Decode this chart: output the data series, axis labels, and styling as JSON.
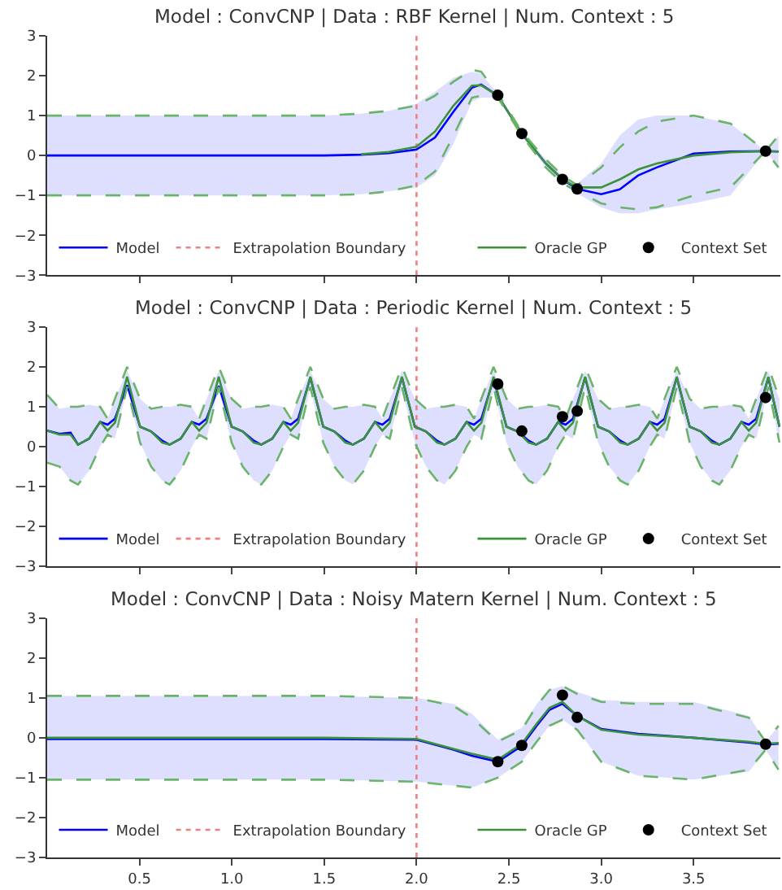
{
  "chart_data": [
    {
      "type": "line",
      "title": "Model : ConvCNP | Data : RBF Kernel | Num. Context : 5",
      "xlim": [
        0,
        3.97
      ],
      "xticks": [
        0.5,
        1.0,
        1.5,
        2.0,
        2.5,
        3.0,
        3.5
      ],
      "ylim": [
        -3,
        3
      ],
      "yticks": [
        {
          "value": -3,
          "label": "−3"
        },
        {
          "value": -2,
          "label": "−2"
        },
        {
          "value": -1,
          "label": "−1"
        },
        0,
        1,
        2,
        3
      ],
      "tick_labels": "y",
      "legend": "bottom",
      "x": [
        0,
        0.5,
        1.0,
        1.5,
        1.7,
        1.85,
        2.0,
        2.1,
        2.2,
        2.3,
        2.35,
        2.44,
        2.57,
        2.7,
        2.79,
        2.87,
        3.0,
        3.1,
        3.2,
        3.3,
        3.5,
        3.7,
        3.89,
        3.96
      ],
      "ref_lines": [
        {
          "axis": "x",
          "value": 2.0,
          "label": "Extrapolation Boundary",
          "color": "#f08080",
          "line_style": "dotted"
        }
      ],
      "series": [
        {
          "name": "Model",
          "color": "#0000ff",
          "values": [
            0,
            0,
            0,
            0,
            0.02,
            0.06,
            0.15,
            0.45,
            1.1,
            1.7,
            1.78,
            1.5,
            0.55,
            -0.2,
            -0.6,
            -0.84,
            -0.97,
            -0.85,
            -0.5,
            -0.3,
            0.05,
            0.1,
            0.11,
            0.1
          ],
          "lower": [
            -1,
            -1,
            -1,
            -1,
            -0.97,
            -0.9,
            -0.8,
            -0.5,
            0.3,
            1.35,
            1.45,
            1.45,
            0.5,
            -0.3,
            -0.7,
            -0.95,
            -1.3,
            -1.45,
            -1.45,
            -1.35,
            -1.2,
            -1.0,
            0.11,
            -0.3
          ],
          "upper": [
            1,
            1,
            1,
            1,
            1.05,
            1.12,
            1.3,
            1.6,
            1.95,
            2.1,
            2.05,
            1.55,
            0.6,
            -0.1,
            -0.5,
            -0.7,
            -0.2,
            0.5,
            0.9,
            1.0,
            1.0,
            0.8,
            0.11,
            0.5
          ]
        },
        {
          "name": "Oracle GP",
          "color": "#3a923a",
          "values": [
            null,
            null,
            null,
            null,
            0.03,
            0.09,
            0.22,
            0.6,
            1.25,
            1.75,
            1.76,
            1.5,
            0.55,
            -0.2,
            -0.6,
            -0.8,
            -0.8,
            -0.6,
            -0.35,
            -0.2,
            0.0,
            0.08,
            0.11,
            0.1
          ]
        },
        {
          "color": "#6ab46a",
          "line_style": "dashed",
          "values": [
            1,
            1,
            1,
            1,
            1.05,
            1.12,
            1.25,
            1.5,
            1.85,
            2.15,
            2.1,
            1.55,
            0.6,
            -0.1,
            -0.5,
            -0.75,
            -0.3,
            0.2,
            0.6,
            0.85,
            1.0,
            0.8,
            0.11,
            0.5
          ]
        },
        {
          "color": "#6ab46a",
          "line_style": "dashed",
          "values": [
            -1,
            -1,
            -1,
            -1,
            -0.97,
            -0.9,
            -0.75,
            -0.4,
            0.5,
            1.45,
            1.5,
            1.45,
            0.5,
            -0.3,
            -0.7,
            -0.9,
            -1.2,
            -1.3,
            -1.35,
            -1.3,
            -1.0,
            -0.8,
            0.11,
            -0.3
          ]
        },
        {
          "name": "Context Set",
          "type": "scatter",
          "marker": "circle",
          "color": "#000000",
          "x": [
            2.44,
            2.57,
            2.79,
            2.87,
            3.89
          ],
          "values": [
            1.51,
            0.55,
            -0.6,
            -0.84,
            0.11
          ]
        }
      ]
    },
    {
      "type": "line",
      "title": "Model : ConvCNP | Data : Periodic Kernel | Num. Context : 5",
      "xlim": [
        0,
        3.97
      ],
      "xticks": [
        0.5,
        1.0,
        1.5,
        2.0,
        2.5,
        3.0,
        3.5
      ],
      "ylim": [
        -3,
        3
      ],
      "yticks": [
        {
          "value": -3,
          "label": "−3"
        },
        {
          "value": -2,
          "label": "−2"
        },
        {
          "value": -1,
          "label": "−1"
        },
        0,
        1,
        2,
        3
      ],
      "tick_labels": "y",
      "legend": "bottom",
      "x": [
        0.0,
        0.067,
        0.127,
        0.167,
        0.227,
        0.287,
        0.327,
        0.367,
        0.433,
        0.503,
        0.563,
        0.623,
        0.663,
        0.723,
        0.783,
        0.823,
        0.863,
        0.929,
        0.999,
        1.059,
        1.119,
        1.159,
        1.219,
        1.279,
        1.319,
        1.359,
        1.425,
        1.495,
        1.555,
        1.615,
        1.655,
        1.715,
        1.775,
        1.815,
        1.855,
        1.921,
        1.991,
        2.051,
        2.111,
        2.151,
        2.211,
        2.271,
        2.311,
        2.351,
        2.417,
        2.487,
        2.547,
        2.607,
        2.647,
        2.707,
        2.767,
        2.807,
        2.847,
        2.913,
        2.983,
        3.043,
        3.103,
        3.143,
        3.203,
        3.263,
        3.303,
        3.343,
        3.409,
        3.479,
        3.539,
        3.599,
        3.639,
        3.699,
        3.759,
        3.799,
        3.839,
        3.905,
        3.965
      ],
      "ref_lines": [
        {
          "axis": "x",
          "value": 2.0,
          "label": "Extrapolation Boundary",
          "color": "#f08080",
          "line_style": "dotted"
        }
      ],
      "series": [
        {
          "name": "Model",
          "color": "#0000ff",
          "values": [
            0.4,
            0.32,
            0.35,
            0.05,
            0.2,
            0.62,
            0.55,
            0.7,
            1.54,
            0.5,
            0.38,
            0.15,
            0.05,
            0.2,
            0.62,
            0.55,
            0.7,
            1.52,
            0.5,
            0.38,
            0.15,
            0.05,
            0.2,
            0.62,
            0.55,
            0.7,
            1.73,
            0.5,
            0.38,
            0.15,
            0.05,
            0.2,
            0.62,
            0.55,
            0.7,
            1.73,
            0.5,
            0.38,
            0.15,
            0.05,
            0.2,
            0.62,
            0.55,
            0.7,
            1.7,
            0.5,
            0.38,
            0.15,
            0.05,
            0.2,
            0.62,
            0.55,
            0.7,
            1.73,
            0.5,
            0.38,
            0.15,
            0.05,
            0.2,
            0.62,
            0.55,
            0.7,
            1.73,
            0.5,
            0.38,
            0.15,
            0.05,
            0.2,
            0.62,
            0.55,
            0.7,
            1.73,
            0.5
          ],
          "lower": [
            -0.4,
            -0.5,
            -0.85,
            -0.95,
            -0.6,
            0.0,
            0.3,
            0.2,
            1.45,
            0.1,
            -0.5,
            -0.85,
            -0.95,
            -0.6,
            0.0,
            0.3,
            0.2,
            1.45,
            0.1,
            -0.5,
            -0.85,
            -0.95,
            -0.6,
            0.0,
            0.3,
            0.2,
            1.45,
            0.1,
            -0.5,
            -0.85,
            -0.95,
            -0.6,
            0.0,
            0.3,
            0.2,
            1.45,
            0.1,
            -0.5,
            -0.85,
            -0.95,
            -0.6,
            0.0,
            0.3,
            0.2,
            1.45,
            0.1,
            -0.5,
            -0.85,
            -0.95,
            -0.6,
            0.0,
            0.3,
            0.2,
            1.45,
            0.1,
            -0.5,
            -0.85,
            -0.95,
            -0.6,
            0.0,
            0.3,
            0.2,
            1.45,
            0.1,
            -0.5,
            -0.85,
            -0.95,
            -0.6,
            0.0,
            0.3,
            0.2,
            1.45,
            0.1
          ],
          "upper": [
            1.3,
            0.95,
            1.0,
            1.0,
            1.05,
            1.0,
            0.7,
            1.2,
            1.9,
            1.2,
            0.95,
            1.0,
            1.0,
            1.05,
            1.0,
            0.7,
            1.2,
            1.9,
            1.2,
            0.95,
            1.0,
            1.0,
            1.05,
            1.0,
            0.7,
            1.2,
            1.9,
            1.2,
            0.95,
            1.0,
            1.0,
            1.05,
            1.0,
            0.7,
            1.2,
            1.9,
            1.2,
            0.95,
            1.0,
            1.0,
            1.05,
            1.0,
            0.7,
            1.2,
            1.9,
            1.2,
            0.95,
            1.0,
            1.0,
            1.05,
            1.0,
            0.7,
            1.2,
            1.9,
            1.2,
            0.95,
            1.0,
            1.0,
            1.05,
            1.0,
            0.7,
            1.2,
            1.9,
            1.2,
            0.95,
            1.0,
            1.0,
            1.05,
            1.0,
            0.7,
            1.2,
            1.9,
            1.2
          ]
        },
        {
          "name": "Oracle GP",
          "color": "#3a923a",
          "values": [
            0.4,
            0.3,
            0.3,
            0.05,
            0.2,
            0.62,
            0.4,
            0.6,
            1.75,
            0.5,
            0.38,
            0.1,
            0.05,
            0.2,
            0.62,
            0.4,
            0.6,
            1.75,
            0.5,
            0.38,
            0.1,
            0.05,
            0.2,
            0.62,
            0.4,
            0.6,
            1.75,
            0.5,
            0.38,
            0.1,
            0.05,
            0.2,
            0.62,
            0.4,
            0.6,
            1.75,
            0.5,
            0.38,
            0.1,
            0.05,
            0.2,
            0.62,
            0.4,
            0.6,
            1.75,
            0.5,
            0.38,
            0.1,
            0.05,
            0.2,
            0.62,
            0.4,
            0.6,
            1.75,
            0.5,
            0.38,
            0.1,
            0.05,
            0.2,
            0.62,
            0.4,
            0.6,
            1.75,
            0.5,
            0.38,
            0.1,
            0.05,
            0.2,
            0.62,
            0.4,
            0.6,
            1.75,
            0.5
          ]
        },
        {
          "color": "#6ab46a",
          "line_style": "dashed",
          "values": [
            1.3,
            0.95,
            1.0,
            1.0,
            1.05,
            1.0,
            0.7,
            1.2,
            2.0,
            1.2,
            0.95,
            1.0,
            1.0,
            1.05,
            1.0,
            0.7,
            1.2,
            2.0,
            1.2,
            0.95,
            1.0,
            1.0,
            1.05,
            1.0,
            0.7,
            1.2,
            2.0,
            1.2,
            0.95,
            1.0,
            1.0,
            1.05,
            1.0,
            0.7,
            1.2,
            2.0,
            1.2,
            0.95,
            1.0,
            1.0,
            1.05,
            1.0,
            0.7,
            1.2,
            2.0,
            1.2,
            0.95,
            1.0,
            1.0,
            1.05,
            1.0,
            0.7,
            1.2,
            2.0,
            1.2,
            0.95,
            1.0,
            1.0,
            1.05,
            1.0,
            0.7,
            1.2,
            2.0,
            1.2,
            0.95,
            1.0,
            1.0,
            1.05,
            1.0,
            0.7,
            1.2,
            2.0,
            1.2
          ]
        },
        {
          "color": "#6ab46a",
          "line_style": "dashed",
          "values": [
            -0.4,
            -0.5,
            -0.85,
            -0.95,
            -0.6,
            0.0,
            0.3,
            0.2,
            1.5,
            0.1,
            -0.5,
            -0.85,
            -0.95,
            -0.6,
            0.0,
            0.3,
            0.2,
            1.5,
            0.1,
            -0.5,
            -0.85,
            -0.95,
            -0.6,
            0.0,
            0.3,
            0.2,
            1.5,
            0.1,
            -0.5,
            -0.85,
            -0.95,
            -0.6,
            0.0,
            0.3,
            0.2,
            1.5,
            0.1,
            -0.5,
            -0.85,
            -0.95,
            -0.6,
            0.0,
            0.3,
            0.2,
            1.5,
            0.1,
            -0.5,
            -0.85,
            -0.95,
            -0.6,
            0.0,
            0.3,
            0.2,
            1.5,
            0.1,
            -0.5,
            -0.85,
            -0.95,
            -0.6,
            0.0,
            0.3,
            0.2,
            1.5,
            0.1,
            -0.5,
            -0.85,
            -0.95,
            -0.6,
            0.0,
            0.3,
            0.2,
            1.5,
            0.1
          ]
        },
        {
          "name": "Context Set",
          "type": "scatter",
          "marker": "circle",
          "color": "#000000",
          "x": [
            2.44,
            2.57,
            2.79,
            2.87,
            3.89
          ],
          "values": [
            1.57,
            0.39,
            0.75,
            0.89,
            1.23
          ]
        }
      ]
    },
    {
      "type": "line",
      "title": "Model : ConvCNP | Data : Noisy Matern Kernel | Num. Context : 5",
      "xlim": [
        0,
        3.97
      ],
      "xticks": [
        0.5,
        {
          "value": 1,
          "label": "1.0"
        },
        1.5,
        {
          "value": 2,
          "label": "2.0"
        },
        2.5,
        {
          "value": 3,
          "label": "3.0"
        },
        3.5
      ],
      "ylim": [
        -3,
        3
      ],
      "yticks": [
        {
          "value": -3,
          "label": "−3"
        },
        {
          "value": -2,
          "label": "−2"
        },
        {
          "value": -1,
          "label": "−1"
        },
        0,
        1,
        2,
        3
      ],
      "legend": "bottom",
      "x": [
        0,
        0.5,
        1.0,
        1.5,
        2.0,
        2.2,
        2.3,
        2.44,
        2.57,
        2.65,
        2.72,
        2.79,
        2.87,
        3.0,
        3.2,
        3.5,
        3.8,
        3.89,
        3.96
      ],
      "ref_lines": [
        {
          "axis": "x",
          "value": 2.0,
          "label": "Extrapolation Boundary",
          "color": "#f08080",
          "line_style": "dotted"
        }
      ],
      "series": [
        {
          "name": "Model",
          "color": "#0000ff",
          "values": [
            -0.03,
            -0.03,
            -0.03,
            -0.03,
            -0.05,
            -0.3,
            -0.45,
            -0.6,
            -0.2,
            0.3,
            0.7,
            0.85,
            0.55,
            0.22,
            0.1,
            0.0,
            -0.12,
            -0.17,
            -0.15
          ],
          "lower": [
            -1.05,
            -1.05,
            -1.05,
            -1.05,
            -1.1,
            -1.2,
            -1.25,
            -1.0,
            -0.6,
            -0.1,
            0.3,
            0.45,
            0.2,
            -0.6,
            -0.95,
            -1.05,
            -0.85,
            -0.3,
            -0.8
          ],
          "upper": [
            1.05,
            1.05,
            1.05,
            1.05,
            1.0,
            0.85,
            0.6,
            -0.05,
            0.25,
            0.85,
            1.2,
            1.3,
            1.15,
            0.95,
            0.9,
            0.9,
            0.55,
            -0.1,
            0.3
          ]
        },
        {
          "name": "Oracle GP",
          "color": "#3a923a",
          "values": [
            0,
            0,
            0,
            0,
            -0.03,
            -0.28,
            -0.4,
            -0.55,
            -0.15,
            0.35,
            0.75,
            0.9,
            0.55,
            0.2,
            0.08,
            0.0,
            -0.1,
            -0.15,
            -0.13
          ]
        },
        {
          "color": "#6ab46a",
          "line_style": "dashed",
          "values": [
            1.05,
            1.05,
            1.05,
            1.05,
            1.0,
            0.8,
            0.5,
            -0.1,
            0.2,
            0.8,
            1.2,
            1.3,
            1.1,
            0.9,
            0.85,
            0.85,
            0.5,
            -0.1,
            0.3
          ]
        },
        {
          "color": "#6ab46a",
          "line_style": "dashed",
          "values": [
            -1.05,
            -1.05,
            -1.05,
            -1.05,
            -1.1,
            -1.2,
            -1.25,
            -1.0,
            -0.6,
            -0.1,
            0.3,
            0.45,
            0.2,
            -0.6,
            -0.95,
            -1.05,
            -0.8,
            -0.3,
            -0.8
          ]
        },
        {
          "name": "Context Set",
          "type": "scatter",
          "marker": "circle",
          "color": "#000000",
          "x": [
            2.44,
            2.57,
            2.79,
            2.87,
            3.89
          ],
          "values": [
            -0.6,
            -0.19,
            1.07,
            0.51,
            -0.16
          ]
        }
      ]
    }
  ]
}
